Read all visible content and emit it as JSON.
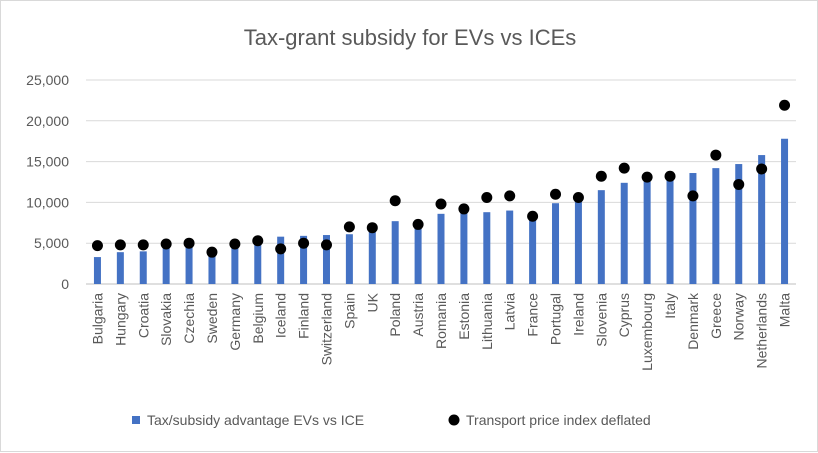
{
  "chart_data": {
    "type": "bar",
    "title": "Tax-grant subsidy for EVs vs ICEs",
    "xlabel": "",
    "ylabel": "",
    "ylim": [
      0,
      25000
    ],
    "yticks": [
      "0",
      "5,000",
      "10,000",
      "15,000",
      "20,000",
      "25,000"
    ],
    "grid": true,
    "legend_position": "bottom",
    "categories": [
      "Bulgaria",
      "Hungary",
      "Croatia",
      "Slovakia",
      "Czechia",
      "Sweden",
      "Germany",
      "Belgium",
      "Iceland",
      "Finland",
      "Switzerland",
      "Spain",
      "UK",
      "Poland",
      "Austria",
      "Romania",
      "Estonia",
      "Lithuania",
      "Latvia",
      "France",
      "Portugal",
      "Ireland",
      "Slovenia",
      "Cyprus",
      "Luxembourg",
      "Italy",
      "Denmark",
      "Greece",
      "Norway",
      "Netherlands",
      "Malta"
    ],
    "series": [
      {
        "name": "Tax/subsidy advantage EVs vs ICE",
        "type": "bar",
        "color": "#4472c4",
        "values": [
          3300,
          3900,
          4000,
          4600,
          4600,
          4000,
          4600,
          5000,
          5800,
          5900,
          6000,
          6100,
          6600,
          7700,
          7500,
          8600,
          8800,
          8800,
          9000,
          8800,
          9900,
          10400,
          11500,
          12400,
          12600,
          12900,
          13600,
          14200,
          14700,
          15800,
          17800
        ]
      },
      {
        "name": "Transport price index deflated",
        "type": "scatter",
        "color": "#000000",
        "values": [
          4700,
          4800,
          4800,
          4900,
          5000,
          3900,
          4900,
          5300,
          4300,
          5000,
          4800,
          7000,
          6900,
          10200,
          7300,
          9800,
          9200,
          10600,
          10800,
          8300,
          11000,
          10600,
          13200,
          14200,
          13100,
          13200,
          10800,
          15800,
          12200,
          14100,
          21900
        ]
      }
    ]
  }
}
